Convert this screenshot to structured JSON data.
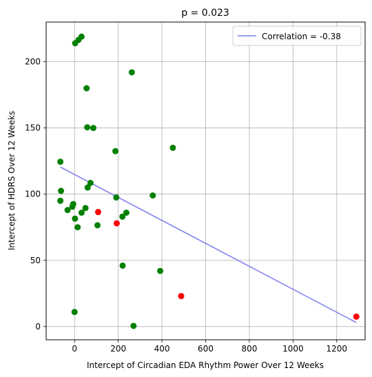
{
  "chart_data": {
    "type": "scatter",
    "title": "p = 0.023",
    "xlabel": "Intercept of Circadian EDA Rhythm Power Over 12 Weeks",
    "ylabel": "Intercept of HDRS Over 12 Weeks",
    "xlim": [
      -130,
      1330
    ],
    "ylim": [
      -10,
      230
    ],
    "xticks": [
      0,
      200,
      400,
      600,
      800,
      1000,
      1200
    ],
    "yticks": [
      0,
      50,
      100,
      150,
      200
    ],
    "grid": true,
    "legend": {
      "position": "top-right",
      "label": "Correlation = -0.38"
    },
    "trend_line": {
      "x": [
        -65,
        1290
      ],
      "y": [
        120.5,
        3
      ],
      "color": "#7b7bf0"
    },
    "series": [
      {
        "color": "#008000",
        "points": [
          [
            3,
            214
          ],
          [
            18,
            216.5
          ],
          [
            32,
            219
          ],
          [
            262,
            192
          ],
          [
            55,
            180
          ],
          [
            58,
            150.5
          ],
          [
            86,
            150
          ],
          [
            187,
            132.5
          ],
          [
            450,
            135
          ],
          [
            -65,
            124.5
          ],
          [
            -62,
            102.5
          ],
          [
            -65,
            95
          ],
          [
            73,
            108.5
          ],
          [
            60,
            105
          ],
          [
            191,
            97.5
          ],
          [
            358,
            99
          ],
          [
            -6,
            92.5
          ],
          [
            -10,
            90.5
          ],
          [
            -32,
            88
          ],
          [
            50,
            89.5
          ],
          [
            32,
            86
          ],
          [
            2,
            81.5
          ],
          [
            237,
            86
          ],
          [
            219,
            83
          ],
          [
            14,
            75
          ],
          [
            105,
            76.5
          ],
          [
            220,
            46
          ],
          [
            392,
            42
          ],
          [
            0,
            11
          ],
          [
            270,
            0.5
          ]
        ]
      },
      {
        "color": "#ff0000",
        "points": [
          [
            108,
            86.5
          ],
          [
            193,
            78
          ],
          [
            488,
            23
          ],
          [
            1290,
            7.5
          ]
        ]
      }
    ]
  }
}
